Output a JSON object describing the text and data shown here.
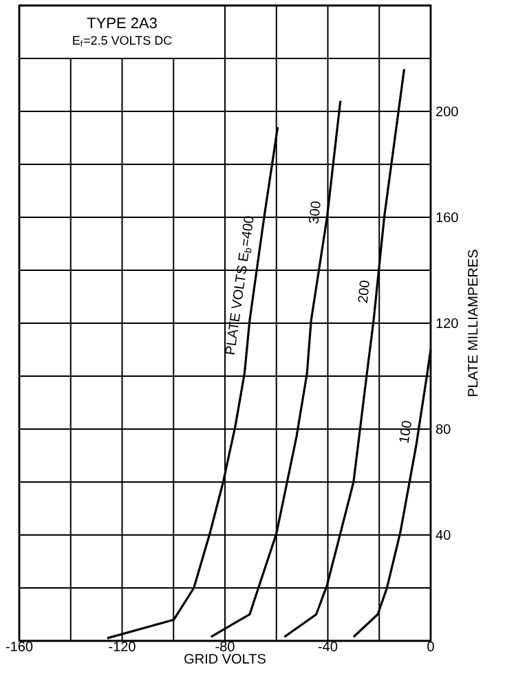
{
  "chart_data": {
    "type": "line",
    "title": "TYPE 2A3",
    "subtitle": "E$_{f}$=2.5 VOLTS DC",
    "xlabel": "GRID VOLTS",
    "ylabel": "PLATE MILLIAMPERES",
    "series": [
      {
        "name": "PLATE VOLTS E$_{b}$=400",
        "color": "#000000",
        "x": [
          -125.8,
          -99.9,
          -92.1,
          -85.9,
          -80.7,
          -76,
          -72.4,
          -70.4,
          -64.7,
          -59.5
        ],
        "values": [
          1,
          8,
          20,
          40.5,
          60,
          81,
          101,
          121,
          160.5,
          194
        ]
      },
      {
        "name": "300",
        "color": "#000000",
        "x": [
          -85.4,
          -70.4,
          -60,
          -52.2,
          -48.1,
          -46.5,
          -40.3,
          -35.1
        ],
        "values": [
          1.5,
          10,
          40.5,
          77,
          101,
          121,
          160,
          204
        ]
      },
      {
        "name": "200",
        "color": "#000000",
        "x": [
          -56.9,
          -44.5,
          -40.3,
          -30,
          -24.8,
          -22.2,
          -18,
          -10.3
        ],
        "values": [
          1.5,
          10,
          21,
          60,
          101,
          121,
          160.5,
          216
        ]
      },
      {
        "name": "100",
        "color": "#000000",
        "x": [
          -30,
          -20.6,
          -17,
          -11.8,
          -5.6,
          -1.5,
          0
        ],
        "values": [
          1.5,
          10,
          20,
          41,
          74,
          100,
          110
        ]
      }
    ],
    "xlim": [
      -160,
      0
    ],
    "ylim": [
      0,
      240
    ],
    "xticks": [
      -160,
      {
        "value": -140,
        "label": null
      },
      -120,
      {
        "value": -100,
        "label": null
      },
      -80,
      {
        "value": -60,
        "label": null
      },
      -40,
      {
        "value": -20,
        "label": null
      },
      0
    ],
    "yticks": [
      {
        "value": 0,
        "label": null
      },
      {
        "value": 20,
        "label": null
      },
      40,
      {
        "value": 60,
        "label": null
      },
      80,
      {
        "value": 100,
        "label": null
      },
      120,
      {
        "value": 140,
        "label": null
      },
      160,
      {
        "value": 180,
        "label": null
      },
      200,
      {
        "value": 220,
        "label": null
      },
      {
        "value": 240,
        "label": null
      }
    ],
    "grid": true,
    "marker": "none",
    "line_style": "solid"
  }
}
